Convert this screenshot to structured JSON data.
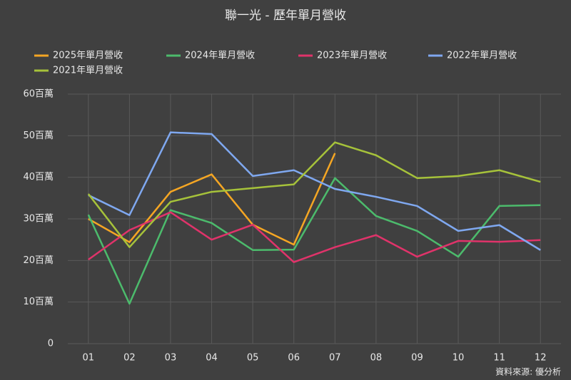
{
  "chart_data": {
    "type": "line",
    "title": "聯一光 - 歷年單月營收",
    "categories": [
      "01",
      "02",
      "03",
      "04",
      "05",
      "06",
      "07",
      "08",
      "09",
      "10",
      "11",
      "12"
    ],
    "series": [
      {
        "name": "2025年單月營收",
        "color": "#f5a623",
        "values": [
          30.0,
          24.4,
          36.5,
          40.7,
          28.6,
          23.8,
          45.8,
          null,
          null,
          null,
          null,
          null
        ]
      },
      {
        "name": "2024年單月營收",
        "color": "#4cbb6c",
        "values": [
          31.0,
          9.6,
          32.1,
          29.0,
          22.5,
          22.6,
          39.8,
          30.7,
          27.1,
          20.9,
          33.1,
          33.3
        ]
      },
      {
        "name": "2023年單月營收",
        "color": "#e0336a",
        "values": [
          20.2,
          27.3,
          31.6,
          25.0,
          28.6,
          19.6,
          23.2,
          26.1,
          20.9,
          24.7,
          24.5,
          24.9
        ]
      },
      {
        "name": "2022年單月營收",
        "color": "#7fa8f0",
        "values": [
          35.7,
          30.9,
          50.8,
          50.4,
          40.3,
          41.7,
          37.2,
          35.3,
          33.1,
          27.1,
          28.5,
          22.5
        ]
      },
      {
        "name": "2021年單月營收",
        "color": "#a6c23a",
        "values": [
          36.0,
          23.2,
          34.1,
          36.5,
          37.4,
          38.3,
          48.4,
          45.3,
          39.8,
          40.3,
          41.7,
          38.9
        ]
      }
    ],
    "ylim": [
      0,
      60
    ],
    "yticks": [
      0,
      {
        "value": 10,
        "label": "10百萬"
      },
      {
        "value": 20,
        "label": "20百萬"
      },
      {
        "value": 30,
        "label": "30百萬"
      },
      {
        "value": 40,
        "label": "40百萬"
      },
      {
        "value": 50,
        "label": "50百萬"
      },
      {
        "value": 60,
        "label": "60百萬"
      }
    ],
    "grid": true,
    "legend": "top",
    "source": "資料來源: 優分析"
  }
}
